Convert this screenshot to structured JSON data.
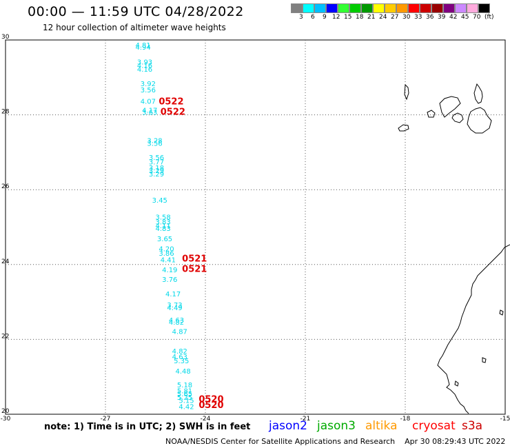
{
  "header": {
    "title": "00:00 — 11:59 UTC 04/28/2022",
    "subtitle": "12 hour collection of altimeter wave heights"
  },
  "legend": {
    "colors": [
      "#808080",
      "#00ffff",
      "#00bfff",
      "#0000ff",
      "#33ff33",
      "#00cc00",
      "#009900",
      "#ffff00",
      "#ffcc00",
      "#ff9900",
      "#ff0000",
      "#cc0000",
      "#990000",
      "#800080",
      "#cc88ff",
      "#ffaadd",
      "#000000"
    ],
    "labels": [
      "3",
      "6",
      "9",
      "12",
      "15",
      "18",
      "21",
      "24",
      "27",
      "30",
      "33",
      "36",
      "39",
      "42",
      "45",
      "70"
    ],
    "unit": "(ft)"
  },
  "axes": {
    "x_labels": [
      "-30",
      "-27",
      "-24",
      "-21",
      "-18",
      "-15"
    ],
    "y_labels": [
      "20",
      "22",
      "24",
      "26",
      "28",
      "30"
    ],
    "x_range": [
      -30,
      -15
    ],
    "y_range": [
      20,
      30
    ]
  },
  "observations": [
    {
      "lon": -26.1,
      "lat": 29.8,
      "v": "4.81"
    },
    {
      "lon": -26.1,
      "lat": 29.74,
      "v": "4.94"
    },
    {
      "lon": -26.05,
      "lat": 29.35,
      "v": "3.93"
    },
    {
      "lon": -26.05,
      "lat": 29.25,
      "v": "4.16"
    },
    {
      "lon": -26.05,
      "lat": 29.15,
      "v": "4.16"
    },
    {
      "lon": -25.95,
      "lat": 28.77,
      "v": "3.92"
    },
    {
      "lon": -25.95,
      "lat": 28.6,
      "v": "3.56"
    },
    {
      "lon": -25.95,
      "lat": 28.3,
      "v": "4.07"
    },
    {
      "lon": -25.9,
      "lat": 28.06,
      "v": "4.17"
    },
    {
      "lon": -25.9,
      "lat": 28.0,
      "v": "3.63"
    },
    {
      "lon": -25.75,
      "lat": 27.25,
      "v": "3.28"
    },
    {
      "lon": -25.75,
      "lat": 27.17,
      "v": "3.56"
    },
    {
      "lon": -25.7,
      "lat": 26.8,
      "v": "3.56"
    },
    {
      "lon": -25.7,
      "lat": 26.68,
      "v": "3.77"
    },
    {
      "lon": -25.7,
      "lat": 26.52,
      "v": "3.18"
    },
    {
      "lon": -25.7,
      "lat": 26.45,
      "v": "3.29"
    },
    {
      "lon": -25.7,
      "lat": 26.35,
      "v": "3.29"
    },
    {
      "lon": -25.6,
      "lat": 25.65,
      "v": "3.45"
    },
    {
      "lon": -25.5,
      "lat": 25.2,
      "v": "3.58"
    },
    {
      "lon": -25.5,
      "lat": 25.07,
      "v": "3.83"
    },
    {
      "lon": -25.5,
      "lat": 24.97,
      "v": "4.11"
    },
    {
      "lon": -25.5,
      "lat": 24.9,
      "v": "4.83"
    },
    {
      "lon": -25.45,
      "lat": 24.62,
      "v": "3.65"
    },
    {
      "lon": -25.4,
      "lat": 24.36,
      "v": "4.20"
    },
    {
      "lon": -25.4,
      "lat": 24.24,
      "v": "3.86"
    },
    {
      "lon": -25.35,
      "lat": 24.06,
      "v": "4.41"
    },
    {
      "lon": -25.3,
      "lat": 23.79,
      "v": "4.19"
    },
    {
      "lon": -25.3,
      "lat": 23.54,
      "v": "3.76"
    },
    {
      "lon": -25.2,
      "lat": 23.15,
      "v": "4.17"
    },
    {
      "lon": -25.15,
      "lat": 22.85,
      "v": "3.73"
    },
    {
      "lon": -25.15,
      "lat": 22.78,
      "v": "4.49"
    },
    {
      "lon": -25.1,
      "lat": 22.45,
      "v": "4.63"
    },
    {
      "lon": -25.1,
      "lat": 22.39,
      "v": "4.82"
    },
    {
      "lon": -25.0,
      "lat": 22.15,
      "v": "4.87"
    },
    {
      "lon": -25.0,
      "lat": 21.62,
      "v": "4.82"
    },
    {
      "lon": -25.0,
      "lat": 21.47,
      "v": "4.63"
    },
    {
      "lon": -24.95,
      "lat": 21.36,
      "v": "5.35"
    },
    {
      "lon": -24.9,
      "lat": 21.09,
      "v": "4.48"
    },
    {
      "lon": -24.85,
      "lat": 20.72,
      "v": "5.18"
    },
    {
      "lon": -24.85,
      "lat": 20.56,
      "v": "5.81"
    },
    {
      "lon": -24.85,
      "lat": 20.48,
      "v": "5.65"
    },
    {
      "lon": -24.85,
      "lat": 20.39,
      "v": "5.25"
    },
    {
      "lon": -24.8,
      "lat": 20.3,
      "v": "5.15"
    },
    {
      "lon": -24.8,
      "lat": 20.14,
      "v": "4.42"
    }
  ],
  "time_labels": [
    {
      "lon": -25.4,
      "lat": 28.28,
      "t": "0522"
    },
    {
      "lon": -25.35,
      "lat": 28.0,
      "t": "0522"
    },
    {
      "lon": -24.7,
      "lat": 24.08,
      "t": "0521"
    },
    {
      "lon": -24.7,
      "lat": 23.8,
      "t": "0521"
    },
    {
      "lon": -24.2,
      "lat": 20.32,
      "t": "0520"
    },
    {
      "lon": -24.2,
      "lat": 20.17,
      "t": "0520"
    }
  ],
  "footer": {
    "note": "note: 1) Time is in UTC; 2) SWH is in feet",
    "satellites": [
      {
        "name": "jason2",
        "color": "#0000ff"
      },
      {
        "name": "jason3",
        "color": "#00aa00"
      },
      {
        "name": "altika",
        "color": "#ff9900"
      },
      {
        "name": "cryosat",
        "color": "#ff0000"
      },
      {
        "name": "s3a",
        "color": "#cc0000"
      }
    ],
    "credit": "NOAA/NESDIS Center for Satellite Applications and Research    Apr 30 08:29:43 UTC 2022"
  }
}
